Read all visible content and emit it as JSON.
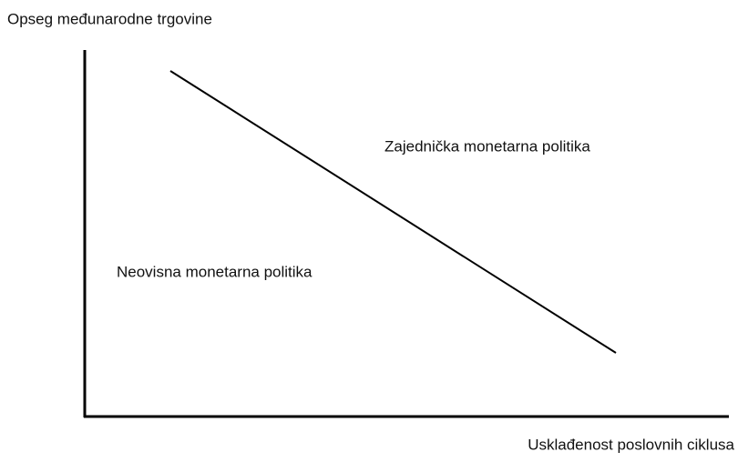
{
  "axes": {
    "y_label": "Opseg međunarodne trgovine",
    "x_label": "Usklađenost poslovnih ciklusa"
  },
  "regions": {
    "above": "Zajednička monetarna politika",
    "below": "Neovisna monetarna politika"
  }
}
